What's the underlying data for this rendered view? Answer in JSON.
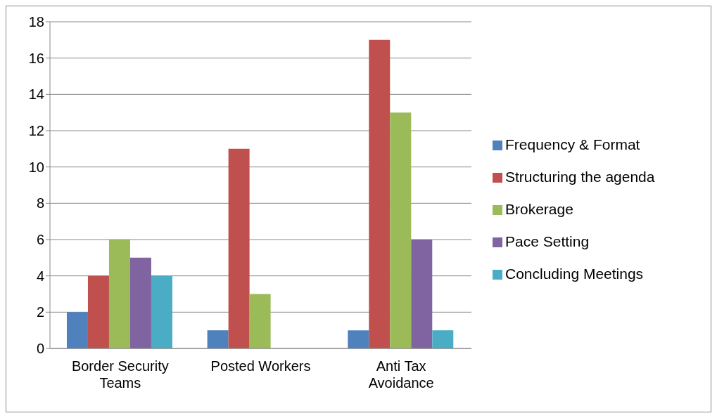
{
  "chart_data": {
    "type": "bar",
    "categories": [
      "Border Security Teams",
      "Posted Workers",
      "Anti Tax Avoidance"
    ],
    "series": [
      {
        "name": "Frequency & Format",
        "color": "#4f81bd",
        "values": [
          2,
          1,
          1
        ]
      },
      {
        "name": "Structuring the agenda",
        "color": "#c0504d",
        "values": [
          4,
          11,
          17
        ]
      },
      {
        "name": "Brokerage",
        "color": "#9bbb59",
        "values": [
          6,
          3,
          13
        ]
      },
      {
        "name": "Pace Setting",
        "color": "#8064a2",
        "values": [
          5,
          0,
          6
        ]
      },
      {
        "name": "Concluding Meetings",
        "color": "#4bacc6",
        "values": [
          4,
          0,
          1
        ]
      }
    ],
    "ylim": [
      0,
      18
    ],
    "yticks": [
      0,
      2,
      4,
      6,
      8,
      10,
      12,
      14,
      16,
      18
    ],
    "grid": "y",
    "legend": "right"
  }
}
